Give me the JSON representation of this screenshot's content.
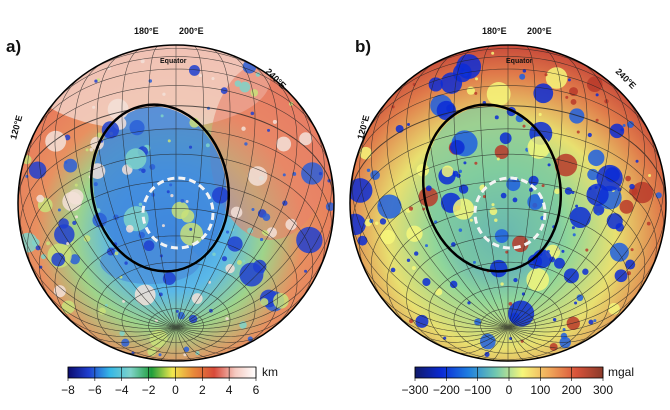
{
  "panels": [
    {
      "label": "a)",
      "lon_labels": [
        "180°E",
        "200°E",
        "240°E",
        "120°E"
      ],
      "equator_label": "Equator",
      "colorbar": {
        "unit": "km",
        "ticks": [
          "−8",
          "−6",
          "−4",
          "−2",
          "0",
          "2",
          "4",
          "6"
        ],
        "range": [
          -8,
          6
        ],
        "colors": [
          "#0b0b6e",
          "#1f3fd0",
          "#35b7e6",
          "#7fd3c9",
          "#1f9e3b",
          "#f2e84e",
          "#e88a3a",
          "#d84a3a",
          "#f5c9c0",
          "#ffffff"
        ]
      }
    },
    {
      "label": "b)",
      "lon_labels": [
        "180°E",
        "200°E",
        "240°E",
        "120°E"
      ],
      "equator_label": "Equator",
      "colorbar": {
        "unit": "mgal",
        "ticks": [
          "−300",
          "−200",
          "−100",
          "0",
          "100",
          "200",
          "300"
        ],
        "range": [
          -300,
          300
        ],
        "colors": [
          "#101a6a",
          "#0a2bd6",
          "#1f7fe0",
          "#6fc7b0",
          "#f6f77a",
          "#f0a85a",
          "#d9533a",
          "#8a3a2a"
        ]
      }
    }
  ]
}
